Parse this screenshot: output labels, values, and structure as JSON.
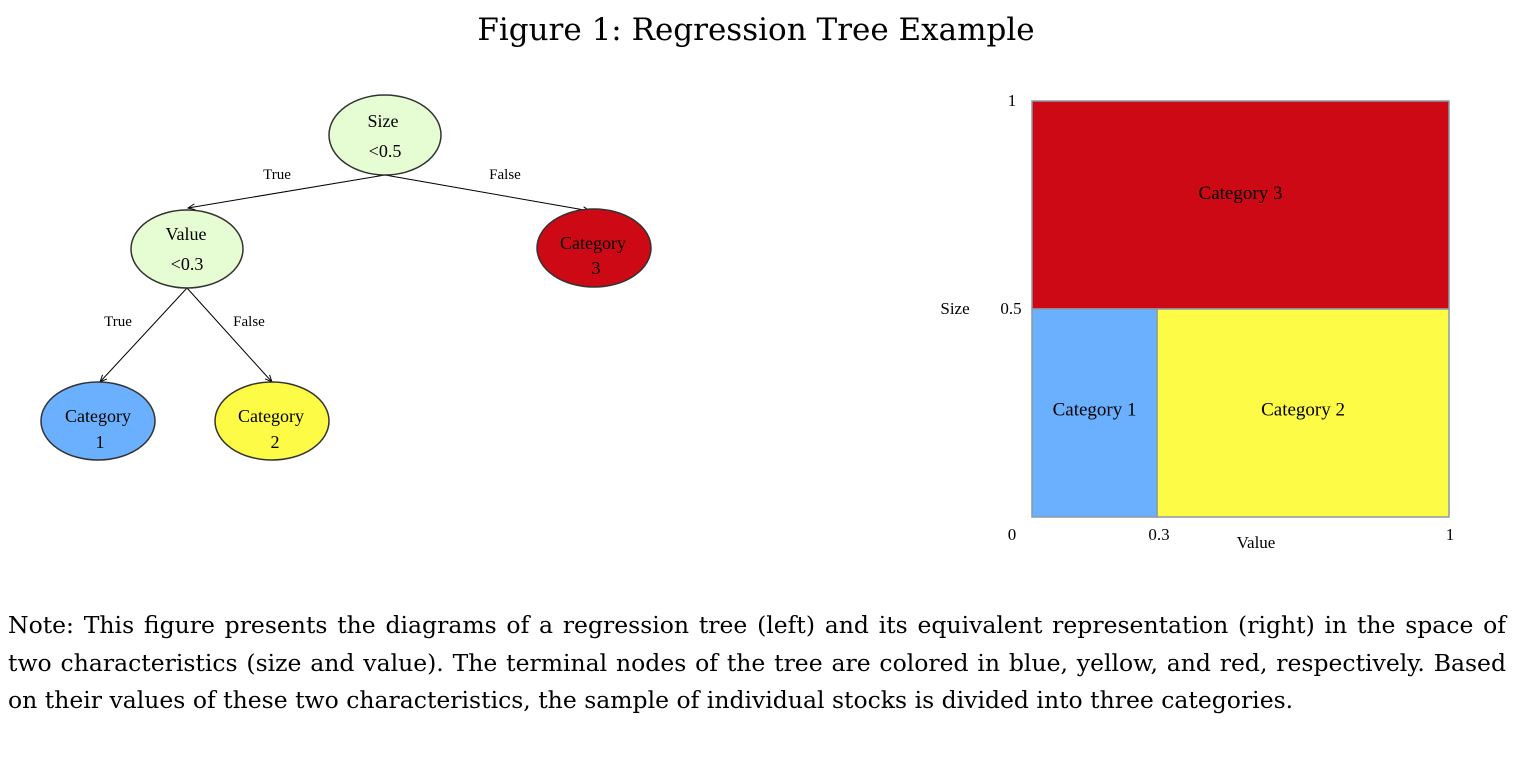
{
  "figure_title": "Figure 1: Regression Tree Example",
  "colors": {
    "split_node": "#e6fcd2",
    "category_1": "#6ab0fe",
    "category_2": "#fefb47",
    "category_3": "#cc0914",
    "region_border": "#8a9aa6"
  },
  "tree": {
    "root": {
      "line1": "Size",
      "line2": "<0.5"
    },
    "root_true_label": "True",
    "root_false_label": "False",
    "value_node": {
      "line1": "Value",
      "line2": "<0.3"
    },
    "value_true_label": "True",
    "value_false_label": "False",
    "leaf_1": {
      "line1": "Category",
      "line2": "1"
    },
    "leaf_2": {
      "line1": "Category",
      "line2": "2"
    },
    "leaf_3": {
      "line1": "Category",
      "line2": "3"
    }
  },
  "partition": {
    "x_axis_label": "Value",
    "y_axis_label": "Size",
    "x_ticks": [
      "0",
      "0.3",
      "1"
    ],
    "y_ticks": [
      "1",
      "0.5"
    ],
    "regions": [
      {
        "label": "Category 3",
        "value_range": [
          0,
          1
        ],
        "size_range": [
          0.5,
          1
        ],
        "color_key": "category_3"
      },
      {
        "label": "Category 1",
        "value_range": [
          0,
          0.3
        ],
        "size_range": [
          0,
          0.5
        ],
        "color_key": "category_1"
      },
      {
        "label": "Category 2",
        "value_range": [
          0.3,
          1
        ],
        "size_range": [
          0,
          0.5
        ],
        "color_key": "category_2"
      }
    ]
  },
  "note": "Note: This figure presents the diagrams of a regression tree (left) and its equivalent representation (right) in the space of two characteristics (size and value). The terminal nodes of the tree are colored in blue, yellow, and red, respectively. Based on their values of these two characteristics, the sample of individual stocks is divided into three categories."
}
